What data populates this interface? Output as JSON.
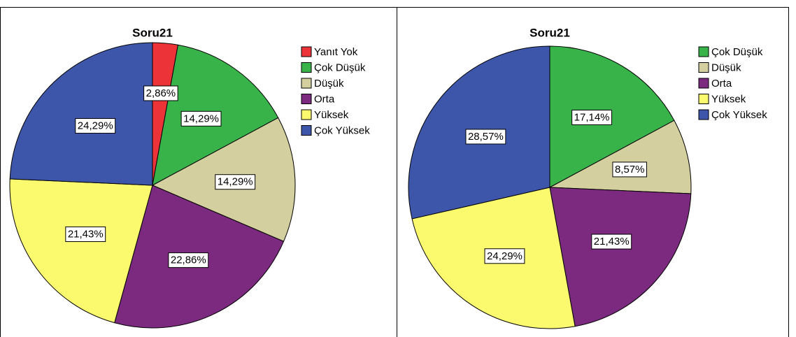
{
  "chart_data": [
    {
      "type": "pie",
      "title": "Soru21",
      "categories": [
        "Yanıt Yok",
        "Çok Düşük",
        "Düşük",
        "Orta",
        "Yüksek",
        "Çok Yüksek"
      ],
      "values": [
        2.86,
        14.29,
        14.29,
        22.86,
        21.43,
        24.29
      ],
      "value_labels": [
        "2,86%",
        "14,29%",
        "14,29%",
        "22,86%",
        "21,43%",
        "24,29%"
      ],
      "colors": [
        "#ec3338",
        "#38b34a",
        "#d4cf9e",
        "#7c2a7f",
        "#fbf96e",
        "#3d56a9"
      ]
    },
    {
      "type": "pie",
      "title": "Soru21",
      "categories": [
        "Çok Düşük",
        "Düşük",
        "Orta",
        "Yüksek",
        "Çok Yüksek"
      ],
      "values": [
        17.14,
        8.57,
        21.43,
        24.29,
        28.57
      ],
      "value_labels": [
        "17,14%",
        "8,57%",
        "21,43%",
        "24,29%",
        "28,57%"
      ],
      "colors": [
        "#38b34a",
        "#d4cf9e",
        "#7c2a7f",
        "#fbf96e",
        "#3d56a9"
      ]
    }
  ]
}
